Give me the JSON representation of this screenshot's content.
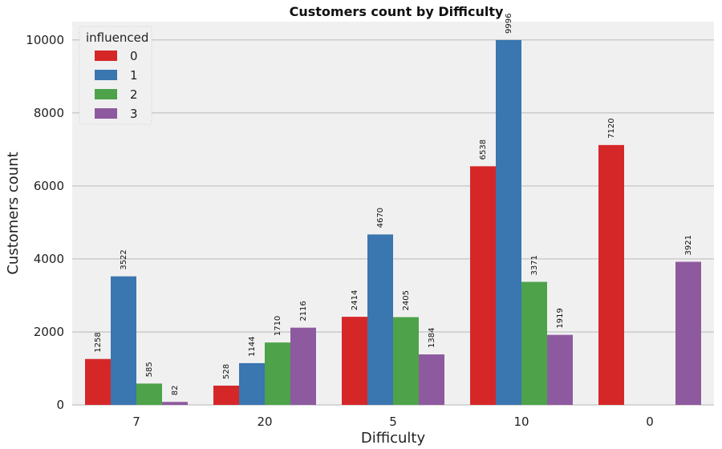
{
  "chart_data": {
    "type": "bar",
    "title": "Customers count by Difficulty",
    "xlabel": "Difficulty",
    "ylabel": "Customers count",
    "categories": [
      "7",
      "20",
      "5",
      "10",
      "0"
    ],
    "ylim": [
      0,
      10500
    ],
    "yticks": [
      "0",
      "2000",
      "4000",
      "6000",
      "8000",
      "10000"
    ],
    "grid": true,
    "legend": {
      "title": "influenced",
      "placement": "top-left"
    },
    "series": [
      {
        "name": "0",
        "color": "#d62728",
        "values": [
          1258,
          528,
          2414,
          6538,
          7120
        ],
        "labels": [
          "1258",
          "528",
          "2414",
          "6538",
          "7120"
        ]
      },
      {
        "name": "1",
        "color": "#3a76af",
        "values": [
          3522,
          1144,
          4670,
          9996,
          null
        ],
        "labels": [
          "3522",
          "1144",
          "4670",
          "9996",
          ""
        ]
      },
      {
        "name": "2",
        "color": "#4ea34a",
        "values": [
          585,
          1710,
          2405,
          3371,
          null
        ],
        "labels": [
          "585",
          "1710",
          "2405",
          "3371",
          ""
        ]
      },
      {
        "name": "3",
        "color": "#8e5a9f",
        "values": [
          82,
          2116,
          1384,
          1919,
          3921
        ],
        "labels": [
          "82",
          "2116",
          "1384",
          "1919",
          "3921"
        ]
      }
    ]
  }
}
